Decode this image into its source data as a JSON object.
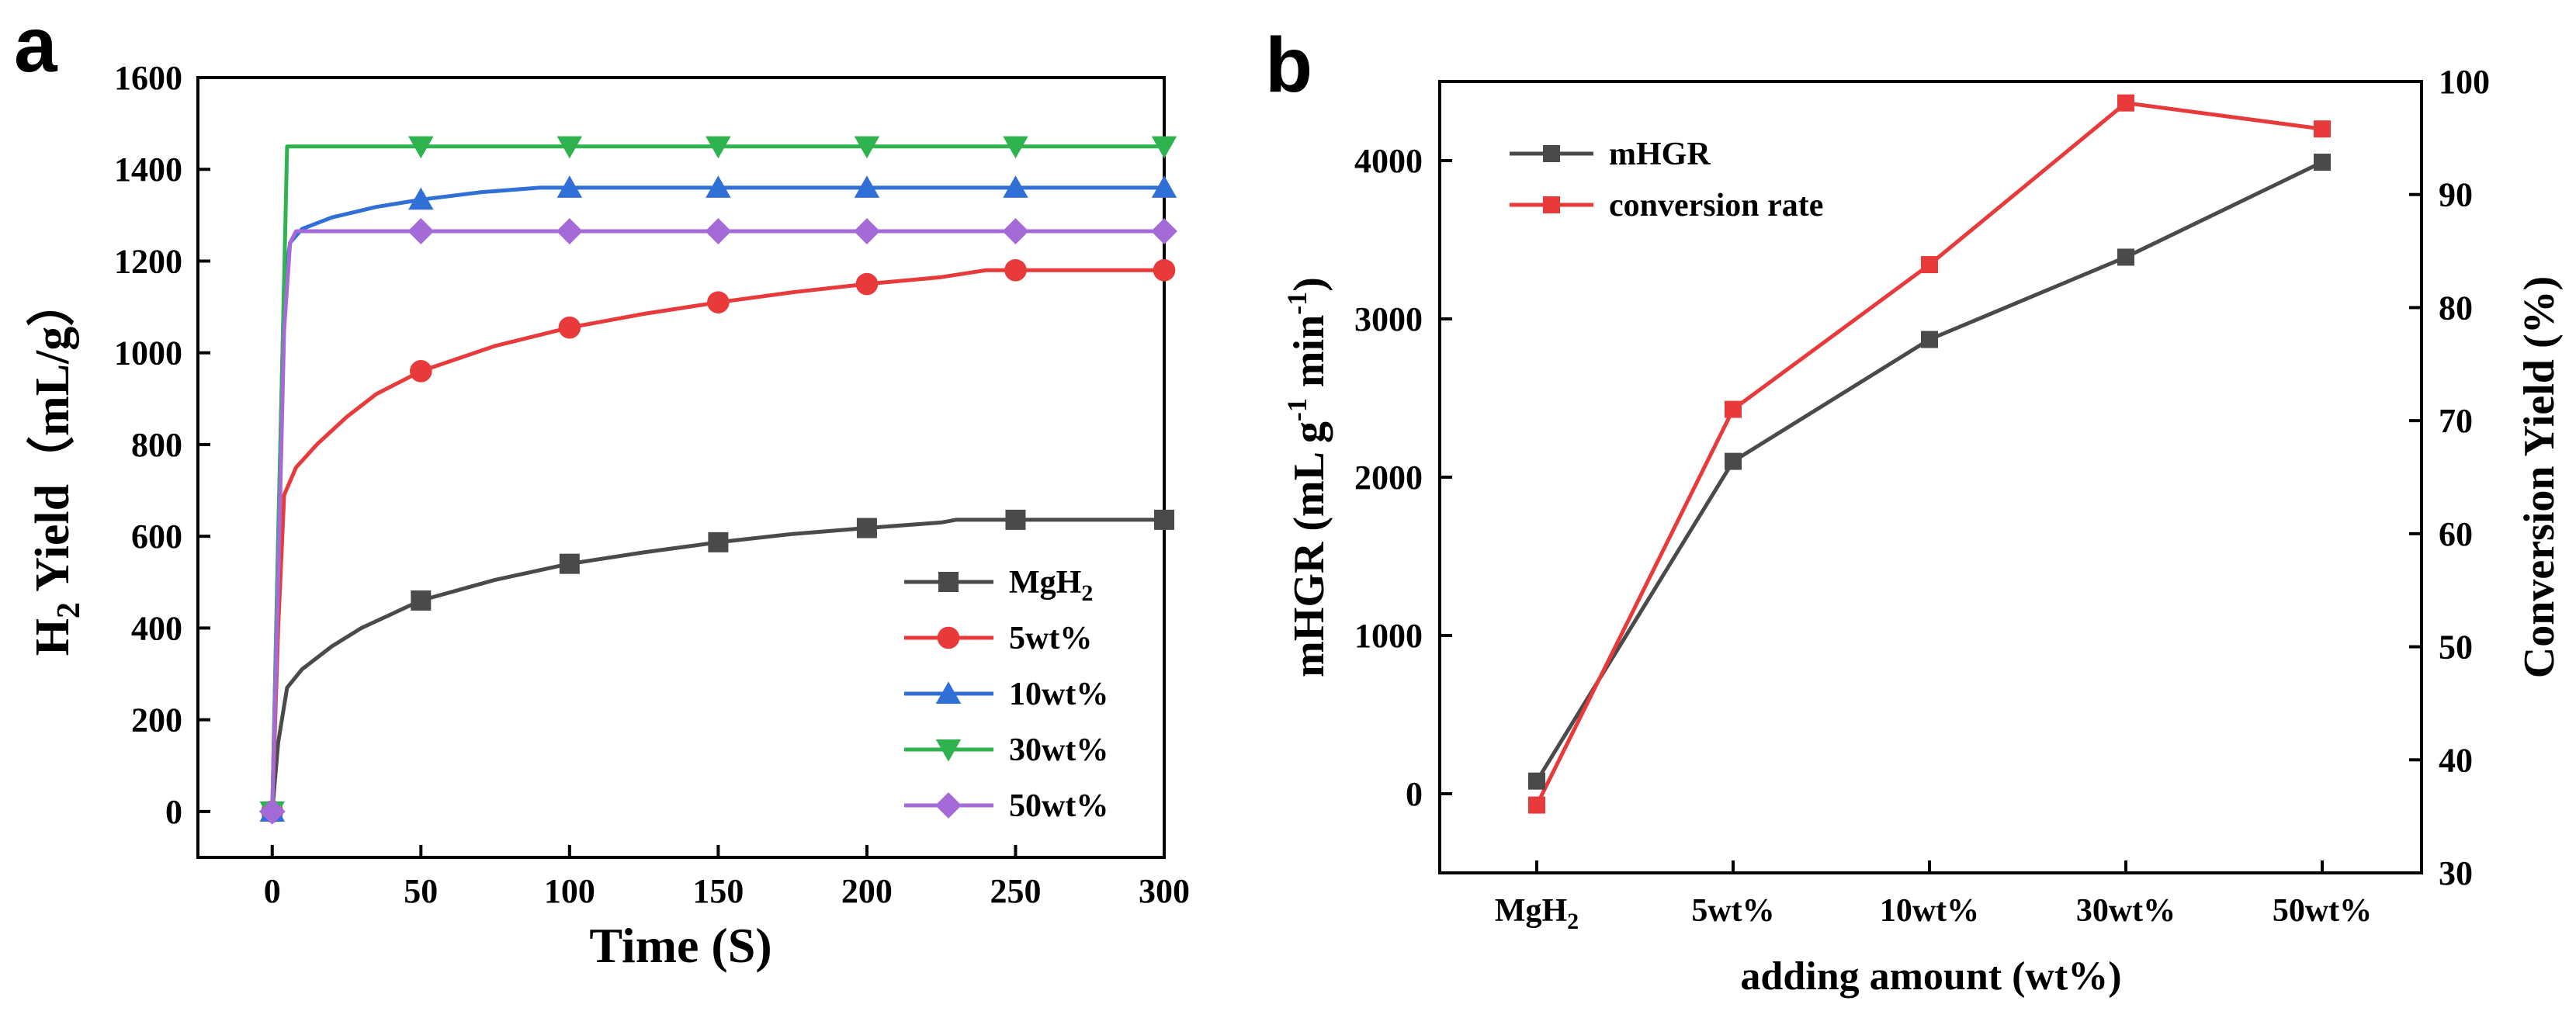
{
  "chart_data": [
    {
      "panel": "a",
      "type": "line",
      "xlabel": "Time (S)",
      "ylabel": "H₂ Yield（mL/g）",
      "ylabel_main": "H",
      "ylabel_sub": "2",
      "ylabel_rest": " Yield（mL/g）",
      "xlim": [
        -25,
        300
      ],
      "ylim": [
        -100,
        1600
      ],
      "xticks": [
        0,
        50,
        100,
        150,
        200,
        250,
        300
      ],
      "yticks": [
        0,
        200,
        400,
        600,
        800,
        1000,
        1200,
        1400,
        1600
      ],
      "legend_position": "bottom-right",
      "series": [
        {
          "name": "MgH2",
          "name_main": "MgH",
          "name_sub": "2",
          "color": "#4a4a4a",
          "marker": "square",
          "curve": [
            [
              0,
              0
            ],
            [
              2,
              150
            ],
            [
              5,
              270
            ],
            [
              10,
              310
            ],
            [
              20,
              360
            ],
            [
              30,
              400
            ],
            [
              50,
              460
            ],
            [
              75,
              505
            ],
            [
              100,
              540
            ],
            [
              125,
              565
            ],
            [
              150,
              587
            ],
            [
              175,
              605
            ],
            [
              200,
              618
            ],
            [
              225,
              630
            ],
            [
              230,
              636
            ],
            [
              250,
              636
            ],
            [
              300,
              636
            ]
          ],
          "points": [
            [
              0,
              0
            ],
            [
              50,
              460
            ],
            [
              100,
              540
            ],
            [
              150,
              587
            ],
            [
              200,
              618
            ],
            [
              250,
              636
            ],
            [
              300,
              636
            ]
          ]
        },
        {
          "name": "5wt%",
          "color": "#e83a3a",
          "marker": "circle",
          "curve": [
            [
              0,
              0
            ],
            [
              2,
              400
            ],
            [
              4,
              690
            ],
            [
              8,
              750
            ],
            [
              15,
              800
            ],
            [
              25,
              860
            ],
            [
              35,
              910
            ],
            [
              50,
              960
            ],
            [
              75,
              1015
            ],
            [
              100,
              1055
            ],
            [
              125,
              1085
            ],
            [
              150,
              1110
            ],
            [
              175,
              1132
            ],
            [
              200,
              1150
            ],
            [
              225,
              1165
            ],
            [
              240,
              1180
            ],
            [
              250,
              1180
            ],
            [
              300,
              1180
            ]
          ],
          "points": [
            [
              0,
              0
            ],
            [
              50,
              960
            ],
            [
              100,
              1055
            ],
            [
              150,
              1110
            ],
            [
              200,
              1150
            ],
            [
              250,
              1180
            ],
            [
              300,
              1180
            ]
          ]
        },
        {
          "name": "10wt%",
          "color": "#2f6fd6",
          "marker": "triangle",
          "curve": [
            [
              0,
              0
            ],
            [
              2,
              600
            ],
            [
              4,
              1150
            ],
            [
              6,
              1240
            ],
            [
              10,
              1270
            ],
            [
              20,
              1295
            ],
            [
              35,
              1318
            ],
            [
              50,
              1334
            ],
            [
              70,
              1350
            ],
            [
              90,
              1360
            ],
            [
              100,
              1360
            ],
            [
              300,
              1360
            ]
          ],
          "points": [
            [
              0,
              0
            ],
            [
              50,
              1334
            ],
            [
              100,
              1360
            ],
            [
              150,
              1360
            ],
            [
              200,
              1360
            ],
            [
              250,
              1360
            ],
            [
              300,
              1360
            ]
          ]
        },
        {
          "name": "30wt%",
          "color": "#2fb34f",
          "marker": "triangle-down",
          "curve": [
            [
              0,
              0
            ],
            [
              5,
              1450
            ],
            [
              300,
              1450
            ]
          ],
          "points": [
            [
              0,
              0
            ],
            [
              50,
              1450
            ],
            [
              100,
              1450
            ],
            [
              150,
              1450
            ],
            [
              200,
              1450
            ],
            [
              250,
              1450
            ],
            [
              300,
              1450
            ]
          ]
        },
        {
          "name": "50wt%",
          "color": "#a46ad8",
          "marker": "diamond",
          "curve": [
            [
              0,
              0
            ],
            [
              2,
              500
            ],
            [
              4,
              1050
            ],
            [
              6,
              1240
            ],
            [
              8,
              1265
            ],
            [
              300,
              1265
            ]
          ],
          "points": [
            [
              0,
              0
            ],
            [
              50,
              1265
            ],
            [
              100,
              1265
            ],
            [
              150,
              1265
            ],
            [
              200,
              1265
            ],
            [
              250,
              1265
            ],
            [
              300,
              1265
            ]
          ]
        }
      ]
    },
    {
      "panel": "b",
      "type": "line",
      "xlabel": "adding amount (wt%)",
      "ylabel": "mHGR (mL g⁻¹ min⁻¹)",
      "y2label": "Conversion Yield (%)",
      "categories": [
        "MgH2",
        "5wt%",
        "10wt%",
        "30wt%",
        "50wt%"
      ],
      "category_labels": [
        {
          "main": "MgH",
          "sub": "2"
        },
        {
          "main": "5wt%",
          "sub": ""
        },
        {
          "main": "10wt%",
          "sub": ""
        },
        {
          "main": "30wt%",
          "sub": ""
        },
        {
          "main": "50wt%",
          "sub": ""
        }
      ],
      "ylim": [
        -500,
        4500
      ],
      "yticks": [
        0,
        1000,
        2000,
        3000,
        4000
      ],
      "y2lim": [
        30,
        100
      ],
      "y2ticks": [
        30,
        40,
        50,
        60,
        70,
        80,
        90,
        100
      ],
      "legend_position": "top-left",
      "series": [
        {
          "name": "mHGR",
          "axis": "left",
          "color": "#4a4a4a",
          "marker": "square",
          "values": [
            80,
            2100,
            2870,
            3390,
            3990
          ]
        },
        {
          "name": "conversion rate",
          "axis": "right",
          "color": "#e83a3a",
          "marker": "square",
          "values": [
            36,
            71,
            83.8,
            98.1,
            95.8
          ]
        }
      ]
    }
  ],
  "panel_labels": {
    "a": "a",
    "b": "b"
  },
  "ylabel_b": {
    "prefix": "mHGR (mL g",
    "sup1": "-1",
    "middle": " min",
    "sup2": "-1",
    "suffix": ")"
  }
}
